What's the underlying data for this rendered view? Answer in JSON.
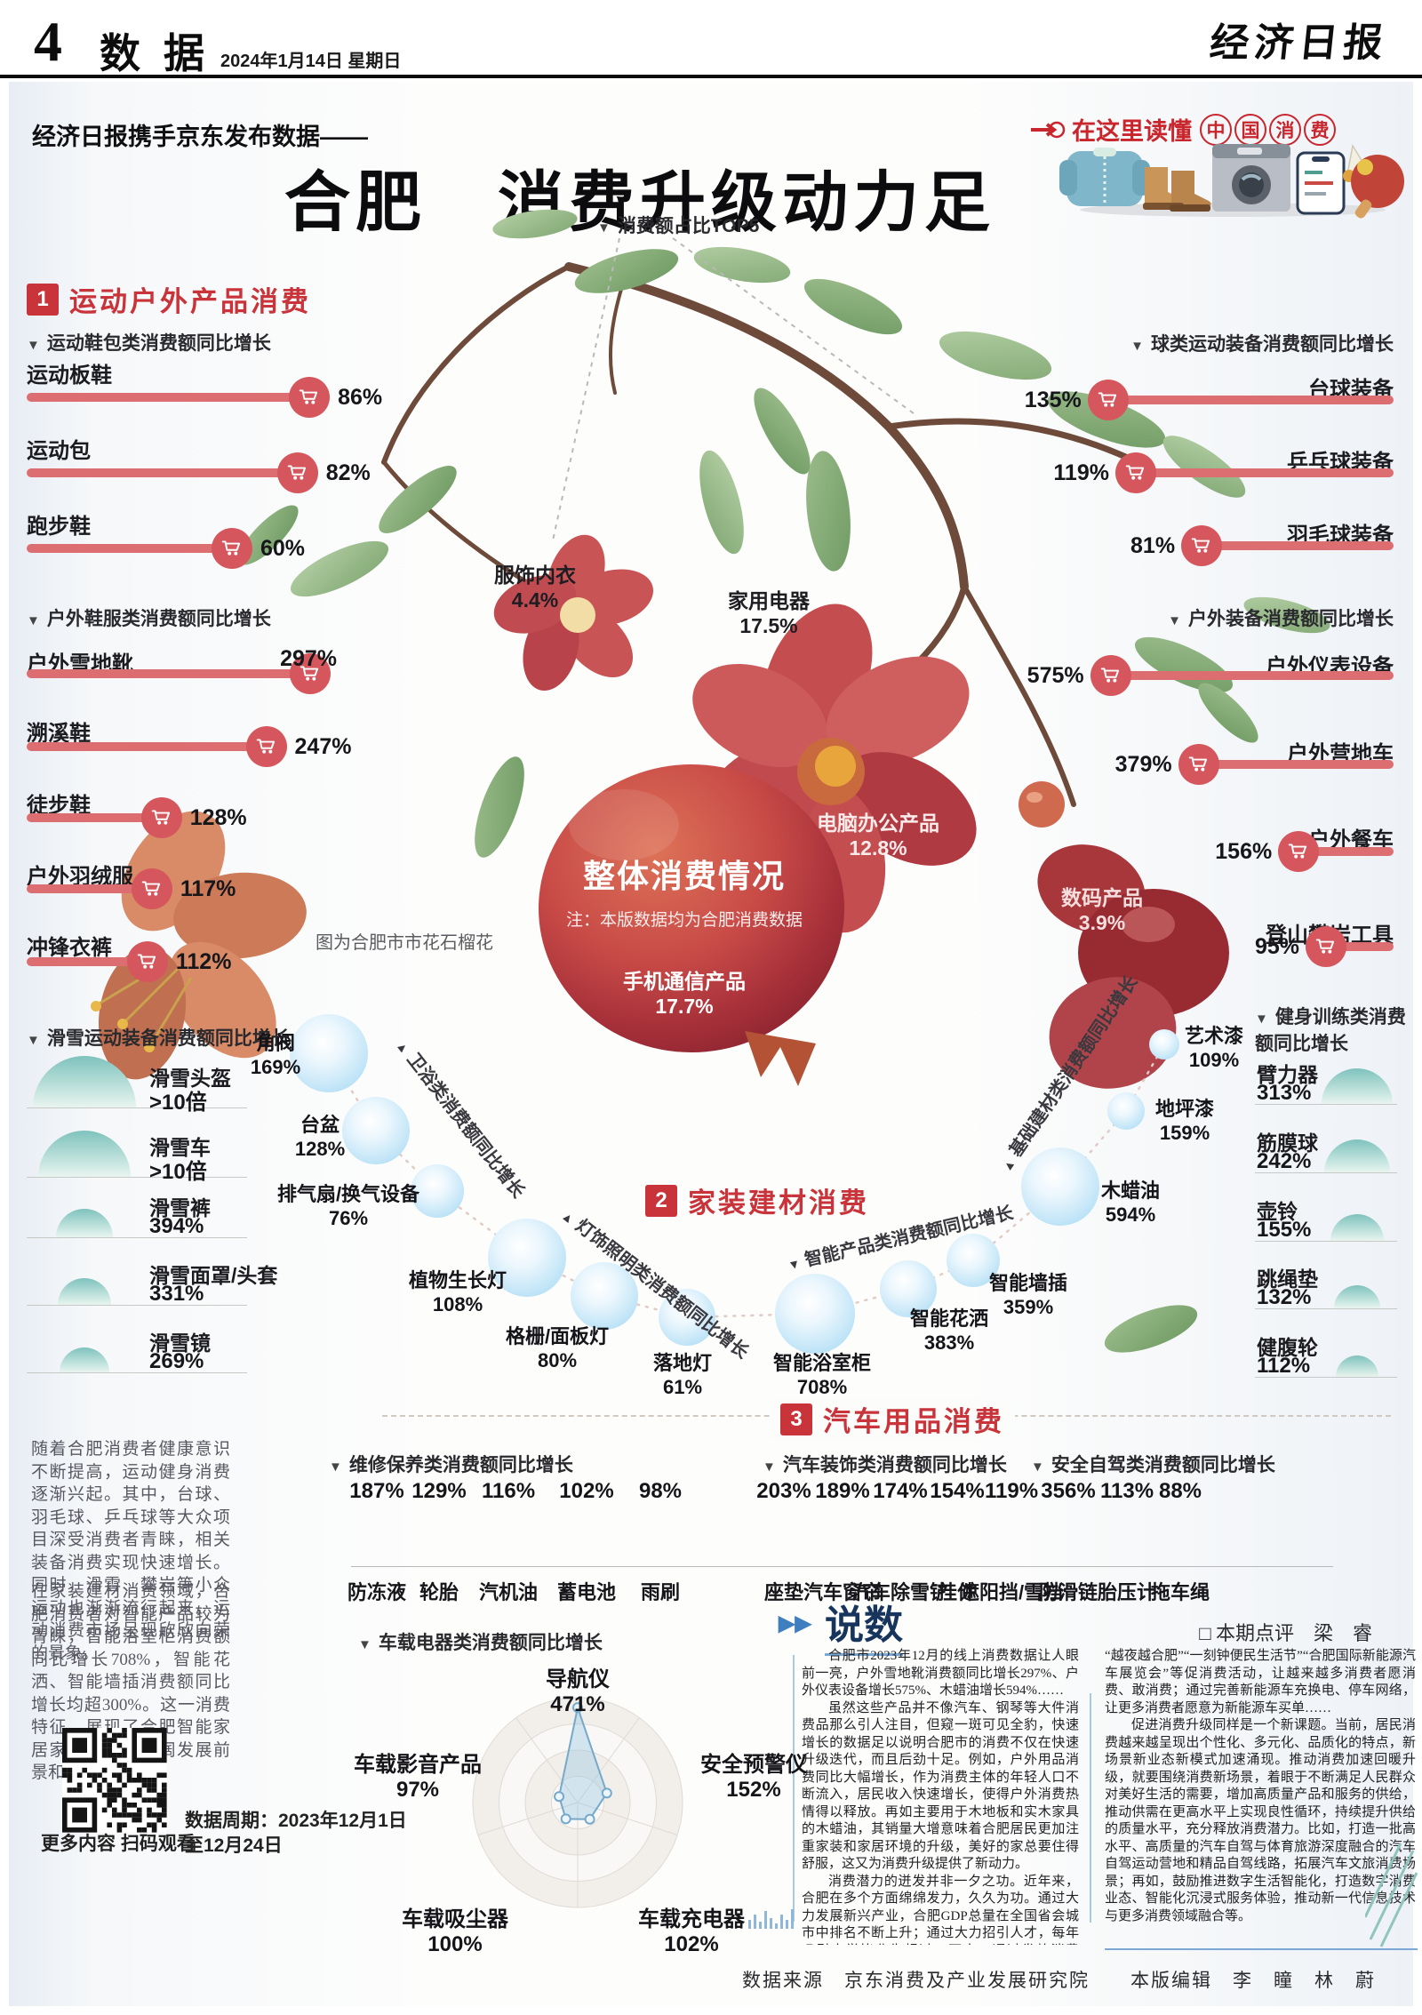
{
  "page": {
    "page_no": "4",
    "page_section": "数据",
    "dateline": "2024年1月14日  星期日",
    "masthead": "经济日报",
    "kicker": "经济日报携手京东发布数据——",
    "title": "合肥　消费升级动力足",
    "banner_prefix": "在这里读懂",
    "banner_circled": [
      "中",
      "国",
      "消",
      "费"
    ],
    "credits": "数据来源　京东消费及产业发展研究院　　本版编辑　李　瞳　林　蔚"
  },
  "icons": {
    "group_marker": "▼",
    "rot_marker_up": "▲",
    "rot_marker_down": "▼",
    "shuoshu_arrows": "▶▶",
    "banner_arrow": "➤"
  },
  "overall": {
    "title": "整体消费情况",
    "note": "注：本版数据均为合肥消费数据",
    "caption": "图为合肥市市花石榴花",
    "top5_label": "消费额占比TOP5",
    "top5": [
      {
        "name": "手机通信产品",
        "value": "17.7%"
      },
      {
        "name": "家用电器",
        "value": "17.5%"
      },
      {
        "name": "电脑办公产品",
        "value": "12.8%"
      },
      {
        "name": "服饰内衣",
        "value": "4.4%"
      },
      {
        "name": "数码产品",
        "value": "3.9%"
      }
    ]
  },
  "section1": {
    "no": "1",
    "title": "运动户外产品消费",
    "bar_groups": [
      {
        "label": "运动鞋包类消费额同比增长",
        "items": [
          {
            "name": "运动板鞋",
            "value": "86%"
          },
          {
            "name": "运动包",
            "value": "82%"
          },
          {
            "name": "跑步鞋",
            "value": "60%"
          }
        ]
      },
      {
        "label": "户外鞋服类消费额同比增长",
        "items": [
          {
            "name": "户外雪地靴",
            "value": "297%"
          },
          {
            "name": "溯溪鞋",
            "value": "247%"
          },
          {
            "name": "徒步鞋",
            "value": "128%"
          },
          {
            "name": "户外羽绒服",
            "value": "117%"
          },
          {
            "name": "冲锋衣裤",
            "value": "112%"
          }
        ]
      },
      {
        "label": "球类运动装备消费额同比增长",
        "items": [
          {
            "name": "台球装备",
            "value": "135%"
          },
          {
            "name": "乒乓球装备",
            "value": "119%"
          },
          {
            "name": "羽毛球装备",
            "value": "81%"
          }
        ]
      },
      {
        "label": "户外装备消费额同比增长",
        "items": [
          {
            "name": "户外仪表设备",
            "value": "575%"
          },
          {
            "name": "户外营地车",
            "value": "379%"
          },
          {
            "name": "户外餐车",
            "value": "156%"
          },
          {
            "name": "登山攀岩工具",
            "value": "95%"
          }
        ]
      }
    ],
    "semi_groups": [
      {
        "label": "滑雪运动装备消费额同比增长",
        "items": [
          {
            "name": "滑雪头盔",
            "value": ">10倍"
          },
          {
            "name": "滑雪车",
            "value": ">10倍"
          },
          {
            "name": "滑雪裤",
            "value": "394%"
          },
          {
            "name": "滑雪面罩/头套",
            "value": "331%"
          },
          {
            "name": "滑雪镜",
            "value": "269%"
          }
        ]
      },
      {
        "label": "健身训练类消费额同比增长",
        "items": [
          {
            "name": "臂力器",
            "value": "313%"
          },
          {
            "name": "筋膜球",
            "value": "242%"
          },
          {
            "name": "壶铃",
            "value": "155%"
          },
          {
            "name": "跳绳垫",
            "value": "132%"
          },
          {
            "name": "健腹轮",
            "value": "112%"
          }
        ]
      }
    ]
  },
  "section2": {
    "no": "2",
    "title": "家装建材消费",
    "groups": [
      {
        "label": "卫浴类消费额同比增长",
        "items": [
          {
            "name": "角阀",
            "value": "169%"
          },
          {
            "name": "台盆",
            "value": "128%"
          },
          {
            "name": "排气扇/换气设备",
            "value": "76%"
          }
        ]
      },
      {
        "label": "灯饰照明类消费额同比增长",
        "items": [
          {
            "name": "植物生长灯",
            "value": "108%"
          },
          {
            "name": "格栅/面板灯",
            "value": "80%"
          },
          {
            "name": "落地灯",
            "value": "61%"
          }
        ]
      },
      {
        "label": "智能产品类消费额同比增长",
        "items": [
          {
            "name": "智能浴室柜",
            "value": "708%"
          },
          {
            "name": "智能花洒",
            "value": "383%"
          },
          {
            "name": "智能墙插",
            "value": "359%"
          }
        ]
      },
      {
        "label": "基础建材类消费额同比增长",
        "items": [
          {
            "name": "木蜡油",
            "value": "594%"
          },
          {
            "name": "地坪漆",
            "value": "159%"
          },
          {
            "name": "艺术漆",
            "value": "109%"
          }
        ]
      }
    ]
  },
  "section3": {
    "no": "3",
    "title": "汽车用品消费",
    "brick_groups": [
      {
        "label": "维修保养类消费额同比增长",
        "items": [
          {
            "name": "防冻液",
            "value": "187%"
          },
          {
            "name": "轮胎",
            "value": "129%"
          },
          {
            "name": "汽机油",
            "value": "116%"
          },
          {
            "name": "蓄电池",
            "value": "102%"
          },
          {
            "name": "雨刷",
            "value": "98%"
          }
        ]
      },
      {
        "label": "汽车装饰类消费额同比增长",
        "items": [
          {
            "name": "座垫",
            "value": "203%"
          },
          {
            "name": "汽车窗帘",
            "value": "189%"
          },
          {
            "name": "汽车除雪铲",
            "value": "174%"
          },
          {
            "name": "挂件",
            "value": "154%"
          },
          {
            "name": "遮阳挡/雪挡",
            "value": "119%"
          }
        ]
      },
      {
        "label": "安全自驾类消费额同比增长",
        "items": [
          {
            "name": "防滑链",
            "value": "356%"
          },
          {
            "name": "胎压计",
            "value": "113%"
          },
          {
            "name": "拖车绳",
            "value": "88%"
          }
        ]
      }
    ],
    "radar": {
      "label": "车载电器类消费额同比增长",
      "items": [
        {
          "name": "导航仪",
          "value": "471%"
        },
        {
          "name": "安全预警仪",
          "value": "152%"
        },
        {
          "name": "车载充电器",
          "value": "102%"
        },
        {
          "name": "车载吸尘器",
          "value": "100%"
        },
        {
          "name": "车载影音产品",
          "value": "97%"
        }
      ]
    }
  },
  "sidebar": {
    "paragraphs": [
      "随着合肥消费者健康意识不断提高，运动健身消费逐渐兴起。其中，台球、羽毛球、乒乓球等大众项目深受消费者青睐，相关装备消费实现快速增长。同时，滑雪、攀岩等小众运动也渐渐流行起来，运动消费市场呈现欣欣向荣的景象。",
      "在家装建材消费领域，合肥消费者对智能产品较为青睐，智能浴室柜消费额同比增长708%，智能花洒、智能墙插消费额同比增长均超300%。这一消费特征，展现了合肥智能家居家装消费的广阔发展前景和潜力。"
    ],
    "qr_caption": "更多内容 扫码观看",
    "data_period": [
      "数据周期：2023年12月1日",
      "至12月24日"
    ]
  },
  "shuoshu": {
    "title": "说数",
    "review": "□ 本期点评　梁　睿",
    "col1": [
      "合肥市2023年12月的线上消费数据让人眼前一亮，户外雪地靴消费额同比增长297%、户外仪表设备增长575%、木蜡油增长594%……",
      "虽然这些产品并不像汽车、钢琴等大件消费品那么引人注目，但窥一斑可见全豹，快速增长的数据足以说明合肥市的消费不仅在快速升级迭代，而且后劲十足。例如，户外用品消费同比大幅增长，作为消费主体的年轻人口不断流入，居民收入快速增长，使得户外消费热情得以释放。再如主要用于木地板和实木家具的木蜡油，其销量大增意味着合肥居民更加注重家装和家居环境的升级，美好的家总要住得舒服，这又为消费升级提供了新动力。",
      "消费潜力的迸发并非一夕之功。近年来，合肥在多个方面绵绵发力，久久为功。通过大力发展新兴产业，合肥GDP总量在全国省会城市中排名不断上升；通过大力招引人才，每年吸引大学毕业生超过30万人；通过发放消费券、举办“66购物节”"
    ],
    "col2": [
      "“越夜越合肥”“一刻钟便民生活节”“合肥国际新能源汽车展览会”等促消费活动，让越来越多消费者愿消费、敢消费；通过完善新能源车充换电、停车网络，让更多消费者愿意为新能源车买单……",
      "促进消费升级同样是一个新课题。当前，居民消费越来越呈现出个性化、多元化、品质化的特点，新场景新业态新模式加速涌现。推动消费加速回暖升级，就要围绕消费新场景，着眼于不断满足人民群众对美好生活的需要，增加高质量产品和服务的供给，推动供需在更高水平上实现良性循环，持续提升供给的质量水平，充分释放消费潜力。比如，打造一批高水平、高质量的汽车自驾与体育旅游深度融合的汽车自驾运动营地和精品自驾线路，拓展汽车文旅消费场景；再如，鼓励推进数字生活智能化，打造数字消费业态、智能化沉浸式服务体验，推动新一代信息技术与更多消费领域融合等。"
    ]
  },
  "colors": {
    "accent_red": "#c9333a",
    "bar_red": "#dc6e72",
    "bubble_blue": "#9cd1ee",
    "semi_teal": "#7fc2bd",
    "brick_blue": "#7e9fd0",
    "brick_red": "#e19598",
    "brick_orange": "#eec17c"
  }
}
